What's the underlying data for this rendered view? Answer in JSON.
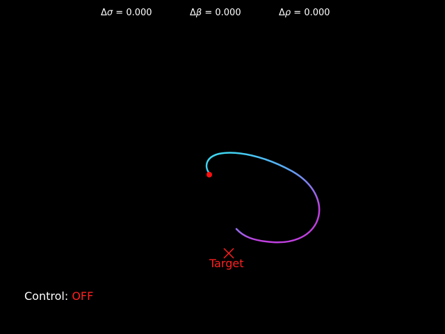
{
  "params": [
    {
      "symbol": "σ",
      "prefix": "Δ",
      "value": "0.000"
    },
    {
      "symbol": "β",
      "prefix": "Δ",
      "value": "0.000"
    },
    {
      "symbol": "ρ",
      "prefix": "Δ",
      "value": "0.000"
    }
  ],
  "target": {
    "label": "Target"
  },
  "control": {
    "label": "Control:",
    "state": "OFF"
  },
  "colors": {
    "background": "#000000",
    "text": "#ffffff",
    "target": "#ff2020",
    "trail_start": "#3fd6f2",
    "trail_end": "#c040e0",
    "state_marker": "#ff1010"
  }
}
